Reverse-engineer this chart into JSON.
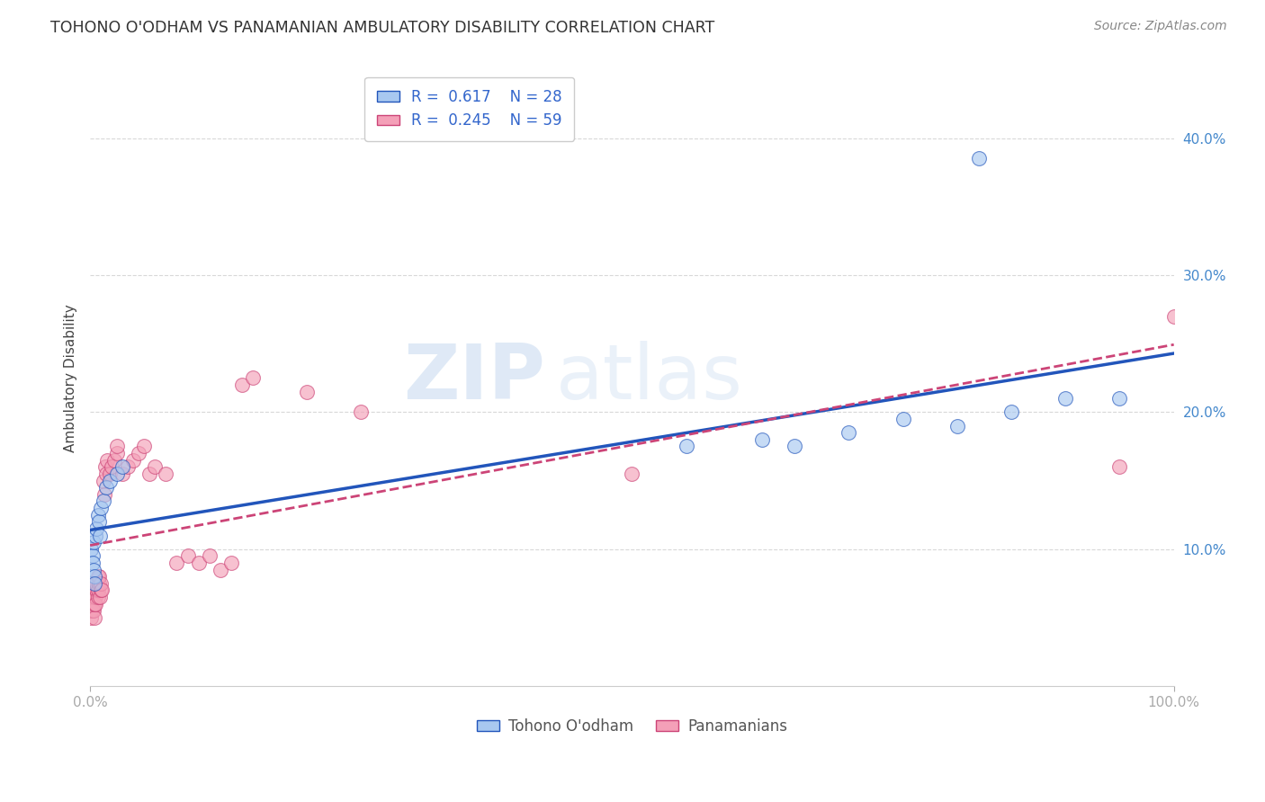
{
  "title": "TOHONO O'ODHAM VS PANAMANIAN AMBULATORY DISABILITY CORRELATION CHART",
  "source": "Source: ZipAtlas.com",
  "ylabel": "Ambulatory Disability",
  "legend_labels": [
    "Tohono O'odham",
    "Panamanians"
  ],
  "r_tohono": 0.617,
  "n_tohono": 28,
  "r_panamanian": 0.245,
  "n_panamanian": 59,
  "color_tohono": "#a8c8f0",
  "color_panamanian": "#f4a0b8",
  "line_color_tohono": "#2255bb",
  "line_color_panamanian": "#cc4477",
  "background_color": "#ffffff",
  "grid_color": "#d8d8d8",
  "tohono_x": [
    0.001,
    0.002,
    0.002,
    0.003,
    0.003,
    0.004,
    0.004,
    0.005,
    0.006,
    0.007,
    0.008,
    0.009,
    0.01,
    0.012,
    0.015,
    0.018,
    0.025,
    0.03,
    0.55,
    0.62,
    0.65,
    0.7,
    0.75,
    0.8,
    0.82,
    0.85,
    0.9,
    0.95
  ],
  "tohono_y": [
    0.1,
    0.095,
    0.09,
    0.105,
    0.085,
    0.08,
    0.075,
    0.11,
    0.115,
    0.125,
    0.12,
    0.11,
    0.13,
    0.135,
    0.145,
    0.15,
    0.155,
    0.16,
    0.175,
    0.18,
    0.175,
    0.185,
    0.195,
    0.19,
    0.385,
    0.2,
    0.21,
    0.21
  ],
  "panama_x": [
    0.001,
    0.001,
    0.001,
    0.002,
    0.002,
    0.002,
    0.003,
    0.003,
    0.003,
    0.003,
    0.004,
    0.004,
    0.004,
    0.004,
    0.005,
    0.005,
    0.005,
    0.006,
    0.006,
    0.007,
    0.007,
    0.007,
    0.008,
    0.008,
    0.009,
    0.01,
    0.01,
    0.011,
    0.012,
    0.013,
    0.014,
    0.015,
    0.016,
    0.018,
    0.02,
    0.022,
    0.025,
    0.025,
    0.03,
    0.035,
    0.04,
    0.045,
    0.05,
    0.055,
    0.06,
    0.07,
    0.08,
    0.09,
    0.1,
    0.11,
    0.12,
    0.13,
    0.14,
    0.15,
    0.2,
    0.25,
    0.5,
    0.95,
    1.0
  ],
  "panama_y": [
    0.06,
    0.05,
    0.055,
    0.07,
    0.065,
    0.055,
    0.07,
    0.065,
    0.06,
    0.055,
    0.05,
    0.065,
    0.075,
    0.06,
    0.07,
    0.065,
    0.06,
    0.07,
    0.075,
    0.08,
    0.065,
    0.07,
    0.075,
    0.08,
    0.065,
    0.07,
    0.075,
    0.07,
    0.15,
    0.14,
    0.16,
    0.155,
    0.165,
    0.155,
    0.16,
    0.165,
    0.17,
    0.175,
    0.155,
    0.16,
    0.165,
    0.17,
    0.175,
    0.155,
    0.16,
    0.155,
    0.09,
    0.095,
    0.09,
    0.095,
    0.085,
    0.09,
    0.22,
    0.225,
    0.215,
    0.2,
    0.155,
    0.16,
    0.27
  ],
  "watermark_zip": "ZIP",
  "watermark_atlas": "atlas",
  "xlim": [
    0.0,
    1.0
  ],
  "ylim": [
    0.0,
    0.45
  ],
  "yticks": [
    0.1,
    0.2,
    0.3,
    0.4
  ],
  "ytick_labels": [
    "10.0%",
    "20.0%",
    "30.0%",
    "40.0%"
  ]
}
